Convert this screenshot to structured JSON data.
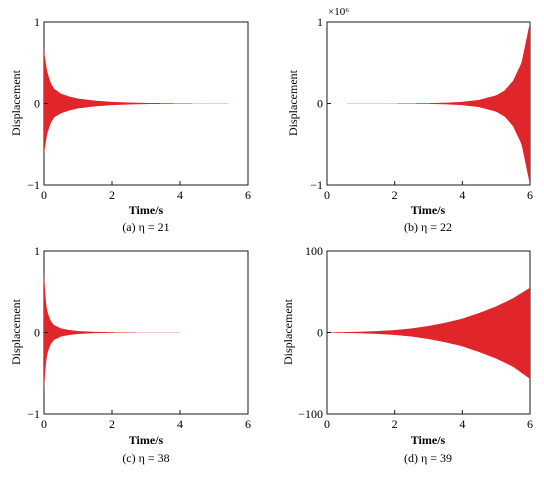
{
  "figure": {
    "colors": {
      "signal": "#e0262a",
      "axis": "#1a1a1a",
      "background": "#ffffff"
    }
  },
  "chart_data": [
    {
      "type": "line",
      "caption": "(a) η = 21",
      "xlabel": "Time/s",
      "ylabel": "Displacement",
      "xlim": [
        0,
        6
      ],
      "ylim": [
        -1,
        1
      ],
      "xticks": [
        "0",
        "2",
        "4",
        "6"
      ],
      "yticks": [
        "−1",
        "0",
        "1"
      ],
      "y_exponent": "",
      "series": [
        {
          "envelope": "upper",
          "x": [
            0.0,
            0.05,
            0.1,
            0.2,
            0.3,
            0.5,
            0.75,
            1.0,
            1.5,
            2.0,
            2.5,
            3.0,
            4.0,
            5.0,
            6.0
          ],
          "y": [
            0.65,
            0.5,
            0.38,
            0.25,
            0.18,
            0.12,
            0.085,
            0.06,
            0.035,
            0.02,
            0.012,
            0.007,
            0.003,
            0.001,
            0.0005
          ]
        },
        {
          "envelope": "lower",
          "x": [
            0.0,
            0.05,
            0.1,
            0.2,
            0.3,
            0.5,
            0.75,
            1.0,
            1.5,
            2.0,
            2.5,
            3.0,
            4.0,
            5.0,
            6.0
          ],
          "y": [
            -0.62,
            -0.48,
            -0.36,
            -0.24,
            -0.17,
            -0.12,
            -0.085,
            -0.06,
            -0.035,
            -0.02,
            -0.012,
            -0.007,
            -0.003,
            -0.001,
            -0.0005
          ]
        }
      ]
    },
    {
      "type": "line",
      "caption": "(b) η = 22",
      "xlabel": "Time/s",
      "ylabel": "Displacement",
      "xlim": [
        0,
        6
      ],
      "ylim": [
        -1,
        1
      ],
      "xticks": [
        "0",
        "2",
        "4",
        "6"
      ],
      "yticks": [
        "−1",
        "0",
        "1"
      ],
      "y_exponent": "×10⁶",
      "series": [
        {
          "envelope": "upper",
          "x": [
            0.0,
            1.0,
            2.0,
            3.0,
            3.5,
            4.0,
            4.5,
            5.0,
            5.25,
            5.5,
            5.75,
            6.0
          ],
          "y": [
            0.0005,
            0.001,
            0.002,
            0.005,
            0.01,
            0.02,
            0.045,
            0.1,
            0.16,
            0.28,
            0.5,
            1.0
          ]
        },
        {
          "envelope": "lower",
          "x": [
            0.0,
            1.0,
            2.0,
            3.0,
            3.5,
            4.0,
            4.5,
            5.0,
            5.25,
            5.5,
            5.75,
            6.0
          ],
          "y": [
            -0.0005,
            -0.001,
            -0.002,
            -0.005,
            -0.01,
            -0.02,
            -0.045,
            -0.1,
            -0.16,
            -0.28,
            -0.5,
            -1.0
          ]
        }
      ]
    },
    {
      "type": "line",
      "caption": "(c) η = 38",
      "xlabel": "Time/s",
      "ylabel": "Displacement",
      "xlim": [
        0,
        6
      ],
      "ylim": [
        -1,
        1
      ],
      "xticks": [
        "0",
        "2",
        "4",
        "6"
      ],
      "yticks": [
        "−1",
        "0",
        "1"
      ],
      "y_exponent": "",
      "series": [
        {
          "envelope": "upper",
          "x": [
            0.0,
            0.05,
            0.1,
            0.2,
            0.3,
            0.5,
            0.75,
            1.0,
            1.5,
            2.0,
            3.0,
            4.0,
            5.0,
            6.0
          ],
          "y": [
            0.72,
            0.4,
            0.25,
            0.14,
            0.09,
            0.05,
            0.03,
            0.018,
            0.008,
            0.004,
            0.0015,
            0.0008,
            0.0005,
            0.0003
          ]
        },
        {
          "envelope": "lower",
          "x": [
            0.0,
            0.05,
            0.1,
            0.2,
            0.3,
            0.5,
            0.75,
            1.0,
            1.5,
            2.0,
            3.0,
            4.0,
            5.0,
            6.0
          ],
          "y": [
            -0.7,
            -0.4,
            -0.25,
            -0.14,
            -0.09,
            -0.05,
            -0.03,
            -0.018,
            -0.008,
            -0.004,
            -0.0015,
            -0.0008,
            -0.0005,
            -0.0003
          ]
        }
      ]
    },
    {
      "type": "line",
      "caption": "(d) η = 39",
      "xlabel": "Time/s",
      "ylabel": "Displacement",
      "xlim": [
        0,
        6
      ],
      "ylim": [
        -100,
        100
      ],
      "xticks": [
        "0",
        "2",
        "4",
        "6"
      ],
      "yticks": [
        "−100",
        "0",
        "100"
      ],
      "y_exponent": "",
      "series": [
        {
          "envelope": "upper",
          "x": [
            0.0,
            0.5,
            1.0,
            1.5,
            2.0,
            2.5,
            3.0,
            3.5,
            4.0,
            4.5,
            5.0,
            5.5,
            6.0
          ],
          "y": [
            0.3,
            0.5,
            1.0,
            1.8,
            3.0,
            5.0,
            8.0,
            12.0,
            17.0,
            24.0,
            32.0,
            42.0,
            55.0
          ]
        },
        {
          "envelope": "lower",
          "x": [
            0.0,
            0.5,
            1.0,
            1.5,
            2.0,
            2.5,
            3.0,
            3.5,
            4.0,
            4.5,
            5.0,
            5.5,
            6.0
          ],
          "y": [
            -0.3,
            -0.5,
            -1.0,
            -1.8,
            -3.0,
            -5.0,
            -8.0,
            -12.0,
            -17.0,
            -24.0,
            -32.0,
            -42.0,
            -57.0
          ]
        }
      ]
    }
  ]
}
